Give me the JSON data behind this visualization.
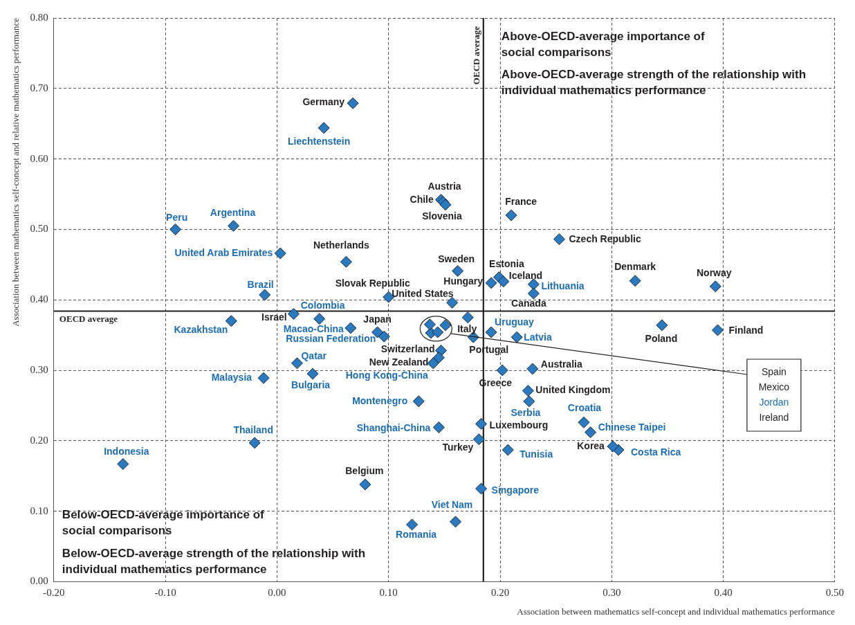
{
  "chart_data": {
    "type": "scatter",
    "xlabel": "Association between mathematics self-concept and individual mathematics performance",
    "ylabel": "Association between mathematics self-concept and relative mathematics performance",
    "xlim": [
      -0.2,
      0.5
    ],
    "ylim": [
      0,
      0.8
    ],
    "xticks": [
      {
        "value": -0.2,
        "label": "-0.20"
      },
      {
        "value": -0.1,
        "label": "-0.10"
      },
      {
        "value": 0,
        "label": "0.00"
      },
      {
        "value": 0.1,
        "label": "0.10"
      },
      {
        "value": 0.2,
        "label": "0.20"
      },
      {
        "value": 0.3,
        "label": "0.30"
      },
      {
        "value": 0.4,
        "label": "0.40"
      },
      {
        "value": 0.5,
        "label": "0.50"
      }
    ],
    "yticks": [
      {
        "value": 0,
        "label": "0.00"
      },
      {
        "value": 0.1,
        "label": "0.10"
      },
      {
        "value": 0.2,
        "label": "0.20"
      },
      {
        "value": 0.3,
        "label": "0.30"
      },
      {
        "value": 0.4,
        "label": "0.40"
      },
      {
        "value": 0.5,
        "label": "0.50"
      },
      {
        "value": 0.6,
        "label": "0.60"
      },
      {
        "value": 0.7,
        "label": "0.70"
      },
      {
        "value": 0.8,
        "label": "0.80"
      }
    ],
    "grid": true,
    "legend": false,
    "marker": "diamond",
    "series": [
      {
        "color": "#2b79bf",
        "x": [
          0.068,
          0.147,
          0.149,
          0.151,
          0.21,
          0.253,
          0.062,
          0.162,
          0.199,
          0.192,
          0.203,
          0.23,
          0.1,
          0.157,
          0.321,
          0.393,
          0.015,
          0.09,
          0.137,
          0.151,
          0.144,
          0.171,
          0.176,
          0.147,
          0.145,
          0.345,
          0.395,
          0.229,
          0.202,
          0.225,
          0.183,
          0.181,
          0.301,
          0.079
        ],
        "values": [
          0.679,
          0.542,
          0.539,
          0.535,
          0.52,
          0.486,
          0.454,
          0.441,
          0.432,
          0.424,
          0.426,
          0.409,
          0.404,
          0.396,
          0.427,
          0.419,
          0.38,
          0.354,
          0.365,
          0.364,
          0.354,
          0.375,
          0.347,
          0.328,
          0.318,
          0.364,
          0.357,
          0.302,
          0.3,
          0.271,
          0.224,
          0.202,
          0.192,
          0.138
        ]
      },
      {
        "color": "#2b79bf",
        "x": [
          0.042,
          -0.091,
          -0.039,
          0.003,
          -0.011,
          0.23,
          0.038,
          -0.041,
          0.066,
          0.096,
          0.138,
          0.14,
          0.192,
          0.215,
          0.018,
          0.032,
          -0.012,
          0.226,
          0.127,
          0.145,
          0.207,
          0.183,
          0.16,
          0.121,
          0.275,
          0.281,
          0.306,
          -0.02,
          -0.138
        ],
        "values": [
          0.644,
          0.5,
          0.505,
          0.466,
          0.407,
          0.422,
          0.373,
          0.37,
          0.36,
          0.348,
          0.353,
          0.31,
          0.354,
          0.347,
          0.31,
          0.295,
          0.289,
          0.256,
          0.256,
          0.219,
          0.187,
          0.132,
          0.085,
          0.081,
          0.226,
          0.212,
          0.187,
          0.197,
          0.167
        ]
      }
    ],
    "ref_lines": [
      {
        "axis": "x",
        "value": 0.185,
        "label": "OECD average"
      },
      {
        "axis": "y",
        "value": 0.384,
        "label": "OECD average"
      }
    ],
    "annotations": [
      {
        "text": "Germany",
        "x": 0.068,
        "y": 0.679
      },
      {
        "text": "Austria",
        "x": 0.147,
        "y": 0.542
      },
      {
        "text": "Chile",
        "x": 0.149,
        "y": 0.539
      },
      {
        "text": "Slovenia",
        "x": 0.151,
        "y": 0.535
      },
      {
        "text": "France",
        "x": 0.21,
        "y": 0.52
      },
      {
        "text": "Czech Republic",
        "x": 0.253,
        "y": 0.486
      },
      {
        "text": "Netherlands",
        "x": 0.062,
        "y": 0.454
      },
      {
        "text": "Sweden",
        "x": 0.162,
        "y": 0.441
      },
      {
        "text": "Estonia",
        "x": 0.199,
        "y": 0.432
      },
      {
        "text": "Hungary",
        "x": 0.192,
        "y": 0.424
      },
      {
        "text": "Iceland",
        "x": 0.203,
        "y": 0.426
      },
      {
        "text": "Canada",
        "x": 0.23,
        "y": 0.409
      },
      {
        "text": "Slovak Republic",
        "x": 0.1,
        "y": 0.404
      },
      {
        "text": "United States",
        "x": 0.157,
        "y": 0.396
      },
      {
        "text": "Denmark",
        "x": 0.321,
        "y": 0.427
      },
      {
        "text": "Norway",
        "x": 0.393,
        "y": 0.419
      },
      {
        "text": "Israel",
        "x": 0.015,
        "y": 0.38
      },
      {
        "text": "Japan",
        "x": 0.09,
        "y": 0.354
      },
      {
        "text": "Italy",
        "x": 0.171,
        "y": 0.375
      },
      {
        "text": "Portugal",
        "x": 0.176,
        "y": 0.347
      },
      {
        "text": "Switzerland",
        "x": 0.147,
        "y": 0.328
      },
      {
        "text": "New Zealand",
        "x": 0.145,
        "y": 0.318
      },
      {
        "text": "Poland",
        "x": 0.345,
        "y": 0.364
      },
      {
        "text": "Finland",
        "x": 0.395,
        "y": 0.357
      },
      {
        "text": "Australia",
        "x": 0.229,
        "y": 0.302
      },
      {
        "text": "Greece",
        "x": 0.202,
        "y": 0.3
      },
      {
        "text": "United Kingdom",
        "x": 0.225,
        "y": 0.271
      },
      {
        "text": "Luxembourg",
        "x": 0.183,
        "y": 0.224
      },
      {
        "text": "Turkey",
        "x": 0.181,
        "y": 0.202
      },
      {
        "text": "Korea",
        "x": 0.301,
        "y": 0.192
      },
      {
        "text": "Belgium",
        "x": 0.079,
        "y": 0.138
      },
      {
        "text": "Liechtenstein",
        "x": 0.042,
        "y": 0.644
      },
      {
        "text": "Peru",
        "x": -0.091,
        "y": 0.5
      },
      {
        "text": "Argentina",
        "x": -0.039,
        "y": 0.505
      },
      {
        "text": "United Arab Emirates",
        "x": 0.003,
        "y": 0.466
      },
      {
        "text": "Brazil",
        "x": -0.011,
        "y": 0.407
      },
      {
        "text": "Lithuania",
        "x": 0.23,
        "y": 0.422
      },
      {
        "text": "Colombia",
        "x": 0.038,
        "y": 0.373
      },
      {
        "text": "Kazakhstan",
        "x": -0.041,
        "y": 0.37
      },
      {
        "text": "Macao-China",
        "x": 0.066,
        "y": 0.36
      },
      {
        "text": "Russian Federation",
        "x": 0.096,
        "y": 0.348
      },
      {
        "text": "Hong Kong-China",
        "x": 0.14,
        "y": 0.31
      },
      {
        "text": "Uruguay",
        "x": 0.192,
        "y": 0.354
      },
      {
        "text": "Latvia",
        "x": 0.215,
        "y": 0.347
      },
      {
        "text": "Qatar",
        "x": 0.018,
        "y": 0.31
      },
      {
        "text": "Bulgaria",
        "x": 0.032,
        "y": 0.295
      },
      {
        "text": "Malaysia",
        "x": -0.012,
        "y": 0.289
      },
      {
        "text": "Serbia",
        "x": 0.226,
        "y": 0.256
      },
      {
        "text": "Montenegro",
        "x": 0.127,
        "y": 0.256
      },
      {
        "text": "Shanghai-China",
        "x": 0.145,
        "y": 0.219
      },
      {
        "text": "Tunisia",
        "x": 0.207,
        "y": 0.187
      },
      {
        "text": "Singapore",
        "x": 0.183,
        "y": 0.132
      },
      {
        "text": "Viet Nam",
        "x": 0.16,
        "y": 0.085
      },
      {
        "text": "Romania",
        "x": 0.121,
        "y": 0.081
      },
      {
        "text": "Croatia",
        "x": 0.275,
        "y": 0.226
      },
      {
        "text": "Chinese Taipei",
        "x": 0.281,
        "y": 0.212
      },
      {
        "text": "Costa Rica",
        "x": 0.306,
        "y": 0.187
      },
      {
        "text": "Thailand",
        "x": -0.02,
        "y": 0.197
      },
      {
        "text": "Indonesia",
        "x": -0.138,
        "y": 0.167
      },
      "Spain",
      "Mexico",
      "Jordan",
      "Ireland",
      "Above-OECD-average importance of social comparisons",
      "Above-OECD-average strength of the relationship with individual mathematics performance",
      "Below-OECD-average importance of social comparisons",
      "Below-OECD-average strength of the relationship with individual mathematics performance"
    ]
  }
}
